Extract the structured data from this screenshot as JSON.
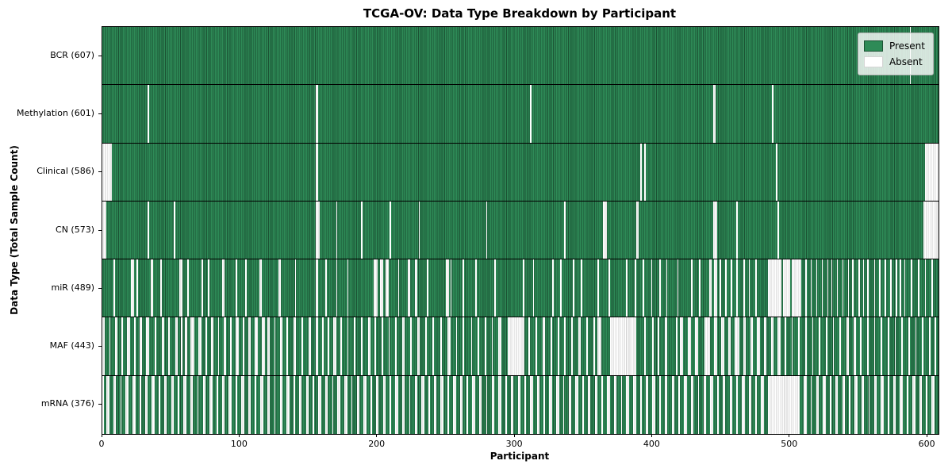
{
  "figure": {
    "colors": {
      "present": "#2e8b57",
      "present_edge": "#1b5233",
      "absent": "#ffffff",
      "absent_edge": "#cfcfcf",
      "spine": "#000000",
      "legend_border": "#b5b5b5"
    }
  },
  "chart_data": {
    "type": "heatmap",
    "title": "TCGA-OV: Data Type Breakdown by Participant",
    "xlabel": "Participant",
    "ylabel": "Data Type (Total Sample Count)",
    "x_range": [
      0,
      608
    ],
    "xticks": [
      0,
      100,
      200,
      300,
      400,
      500,
      600
    ],
    "legend": [
      "Present",
      "Absent"
    ],
    "legend_position": "upper right",
    "grid": false,
    "rows": [
      {
        "label": "BCR (607)",
        "data_type": "BCR",
        "present_count": 607,
        "absent_ranges": "587"
      },
      {
        "label": "Methylation (601)",
        "data_type": "Methylation",
        "present_count": 601,
        "absent_ranges": "33,155-156,311,444-445,487"
      },
      {
        "label": "Clinical (586)",
        "data_type": "Clinical",
        "present_count": 586,
        "absent_ranges": "0-6,155-156,391,394,490,598-607"
      },
      {
        "label": "CN (573)",
        "data_type": "CN",
        "present_count": 573,
        "absent_ranges": "0-2,33,52,155-157,170,188,209,230,279,336,364-366,388-389,444-446,461,491,597-607"
      },
      {
        "label": "miR (489)",
        "data_type": "miR",
        "present_count": 489,
        "absent_ranges": "8,21-22,25,35-36,42,56-57,62,72,77,87-88,97,104,114-115,128-129,140,155-156,162,170,178,197-199,202-203,206-207,215,222-223,227-228,236,250-251,253,262,271,285,306,313,327,333,342,348,360,368,381,387,393,399,405,410,418,428,434,441-442,445-446,449,453,457,461,466,470,475,484-493,495-499,501-507,511,515,519,523,527,530,534,538,542,545,550,553,556,561,565,569,573,577,580,583,588,593,598,603"
      },
      {
        "label": "MAF (443)",
        "data_type": "MAF",
        "present_count": 443,
        "absent_ranges": "0-1,5,9-10,14,18-19,23,27-28,32-33,38,43-44,48,53-54,57,60-61,64-66,70-71,75,79-80,84,88-89,93,97-98,102,106-107,111-112,116-117,120-121,125,129-130,134,139-140,145,150-151,155-156,160,164,168-169,173,178,183,188,193-194,198,203,208,213,218-219,224,229-230,235,240,246,251-252,257,262,268,273,278,283,288-289,295-306,310,315,320-321,326,331,336,341,346-347,352,357,360-362,369-387,394,400,404,409-410,417,420-421,426-427,431-432,438-441,445-446,450-451,455-456,460-462,466-467,471-472,476-477,481-482,486-487,491-492,496,501,506,511,516,521,526,531,536,541-542,546-547,551,556,561,566,571,576,581,586,591,596,601,605"
      },
      {
        "label": "mRNA (376)",
        "data_type": "mRNA",
        "present_count": 376,
        "absent_ranges": "0,3-4,8-9,13,17-18,22-23,27,31-32,36-37,41,45-46,50-51,55,59-60,64-65,69,73-74,78-79,83,87-88,92-93,97,101-102,106-107,111,115-116,120-121,125,129-130,134-135,139,143-144,148-149,153,157-158,162-163,167,171-172,176-177,181,185-186,190-191,195,199-200,204-205,209,213-214,218-219,223,227-228,232-233,237,241-242,246-247,251,255-256,260-261,265,269-270,274-275,279,283-284,288-289,293,297-298,302-303,307,311-312,316-317,321,325-326,330-331,335,339-340,344-345,349,353-354,358-359,363,367-368,372-373,377,381-382,386-387,391,395-396,400-401,405,409-410,414-415,419,423-424,428-429,433,437-438,442-443,447,451-452,456-457,461,465-466,470-471,475,479-480,484-506,510-511,515,519-520,524-525,529,533-534,538-539,543,547-548,552-553,557,561-562,566-567,571,575-576,580-581,585,589-590,594-595,599,603-604"
      }
    ]
  }
}
